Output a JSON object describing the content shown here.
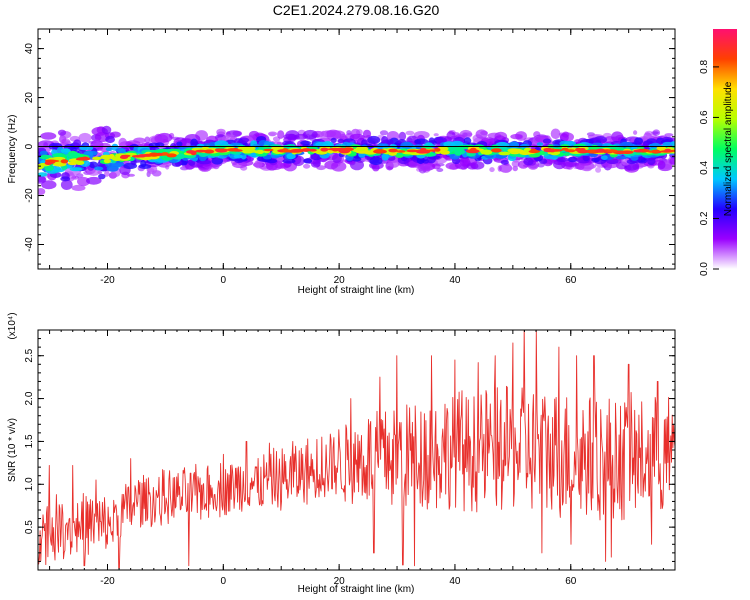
{
  "title": "C2E1.2024.279.08.16.G20",
  "chart_data": [
    {
      "type": "heatmap",
      "xlabel": "Height of straight line (km)",
      "ylabel": "Frequency (Hz)",
      "xlim": [
        -32,
        78
      ],
      "ylim": [
        -50,
        48
      ],
      "xticks": [
        -20,
        0,
        20,
        40,
        60
      ],
      "xtick_labels": [
        "-20",
        "0",
        "20",
        "40",
        "60"
      ],
      "yticks": [
        -40,
        -20,
        0,
        20,
        40
      ],
      "ytick_labels": [
        "-40",
        "-20",
        "0",
        "20",
        "40"
      ],
      "zero_line": 0,
      "ridge": [
        {
          "x": -32,
          "y": -7
        },
        {
          "x": -28,
          "y": -6
        },
        {
          "x": -24,
          "y": -5
        },
        {
          "x": -20,
          "y": -4.5
        },
        {
          "x": -16,
          "y": -4
        },
        {
          "x": -12,
          "y": -3.5
        },
        {
          "x": -8,
          "y": -3
        },
        {
          "x": -4,
          "y": -2
        },
        {
          "x": 0,
          "y": -1.5
        },
        {
          "x": 10,
          "y": -1.5
        },
        {
          "x": 20,
          "y": -1.5
        },
        {
          "x": 30,
          "y": -2
        },
        {
          "x": 40,
          "y": -1.5
        },
        {
          "x": 50,
          "y": -2
        },
        {
          "x": 60,
          "y": -1.5
        },
        {
          "x": 70,
          "y": -2
        },
        {
          "x": 78,
          "y": -1.5
        }
      ],
      "colorbar": {
        "label": "Normalized spectral amplitude",
        "range": [
          0,
          0.95
        ],
        "ticks": [
          0.0,
          0.2,
          0.4,
          0.6,
          0.8
        ],
        "tick_labels": [
          "0.0",
          "0.2",
          "0.4",
          "0.6",
          "0.8"
        ],
        "colors": [
          "#ffffff",
          "#9a00ff",
          "#2200ff",
          "#00c8ff",
          "#00ff60",
          "#b8ff00",
          "#ffe000",
          "#ff4000",
          "#ff1070"
        ]
      }
    },
    {
      "type": "line",
      "xlabel": "Height of straight line (km)",
      "ylabel": "SNR (10 * v/v)",
      "scale_label": "(x10⁴)",
      "xlim": [
        -32,
        78
      ],
      "ylim": [
        0,
        2.8
      ],
      "xticks": [
        -20,
        0,
        20,
        40,
        60
      ],
      "xtick_labels": [
        "-20",
        "0",
        "20",
        "40",
        "60"
      ],
      "yticks": [
        0.5,
        1.0,
        1.5,
        2.0,
        2.5
      ],
      "ytick_labels": [
        "0.5",
        "1.0",
        "1.5",
        "2.0",
        "2.5"
      ],
      "color": "#e8302c",
      "trend": [
        {
          "x": -32,
          "y": 0.45
        },
        {
          "x": -25,
          "y": 0.55
        },
        {
          "x": -20,
          "y": 0.5
        },
        {
          "x": -15,
          "y": 0.8
        },
        {
          "x": -8,
          "y": 0.85
        },
        {
          "x": 0,
          "y": 0.95
        },
        {
          "x": 10,
          "y": 1.05
        },
        {
          "x": 20,
          "y": 1.25
        },
        {
          "x": 30,
          "y": 1.35
        },
        {
          "x": 40,
          "y": 1.4
        },
        {
          "x": 50,
          "y": 1.4
        },
        {
          "x": 60,
          "y": 1.35
        },
        {
          "x": 70,
          "y": 1.3
        },
        {
          "x": 78,
          "y": 1.3
        }
      ],
      "spread": [
        {
          "x": -32,
          "y": 0.35
        },
        {
          "x": -20,
          "y": 0.35
        },
        {
          "x": -15,
          "y": 0.3
        },
        {
          "x": 0,
          "y": 0.3
        },
        {
          "x": 18,
          "y": 0.4
        },
        {
          "x": 28,
          "y": 0.6
        },
        {
          "x": 50,
          "y": 0.75
        },
        {
          "x": 78,
          "y": 0.7
        }
      ],
      "peaks": [
        {
          "x": -30,
          "y": 1.22
        },
        {
          "x": -26,
          "y": 1.22
        },
        {
          "x": -22,
          "y": 1.05
        },
        {
          "x": -16,
          "y": 1.3
        },
        {
          "x": -6,
          "y": 1.42
        },
        {
          "x": 0,
          "y": 1.35
        },
        {
          "x": 4,
          "y": 1.5
        },
        {
          "x": 8,
          "y": 1.48
        },
        {
          "x": 12,
          "y": 1.5
        },
        {
          "x": 17,
          "y": 1.55
        },
        {
          "x": 22,
          "y": 2.0
        },
        {
          "x": 27,
          "y": 2.25
        },
        {
          "x": 30,
          "y": 2.5
        },
        {
          "x": 33,
          "y": 2.35
        },
        {
          "x": 36,
          "y": 2.5
        },
        {
          "x": 40,
          "y": 2.45
        },
        {
          "x": 44,
          "y": 2.42
        },
        {
          "x": 47,
          "y": 2.5
        },
        {
          "x": 50,
          "y": 2.65
        },
        {
          "x": 52,
          "y": 2.85
        },
        {
          "x": 54,
          "y": 2.8
        },
        {
          "x": 58,
          "y": 2.6
        },
        {
          "x": 61,
          "y": 2.5
        },
        {
          "x": 64,
          "y": 2.5
        },
        {
          "x": 67,
          "y": 2.78
        },
        {
          "x": 70,
          "y": 2.4
        },
        {
          "x": 75,
          "y": 2.2
        }
      ],
      "troughs": [
        {
          "x": -24,
          "y": 0.05
        },
        {
          "x": -18,
          "y": 0.02
        },
        {
          "x": -6,
          "y": 0.05
        },
        {
          "x": 26,
          "y": 0.2
        },
        {
          "x": 31,
          "y": 0.06
        },
        {
          "x": 33,
          "y": 0.05
        },
        {
          "x": 55,
          "y": 0.2
        },
        {
          "x": 60,
          "y": 0.3
        },
        {
          "x": 66,
          "y": 0.1
        },
        {
          "x": 67,
          "y": 0.15
        },
        {
          "x": 74,
          "y": 0.3
        }
      ]
    }
  ]
}
